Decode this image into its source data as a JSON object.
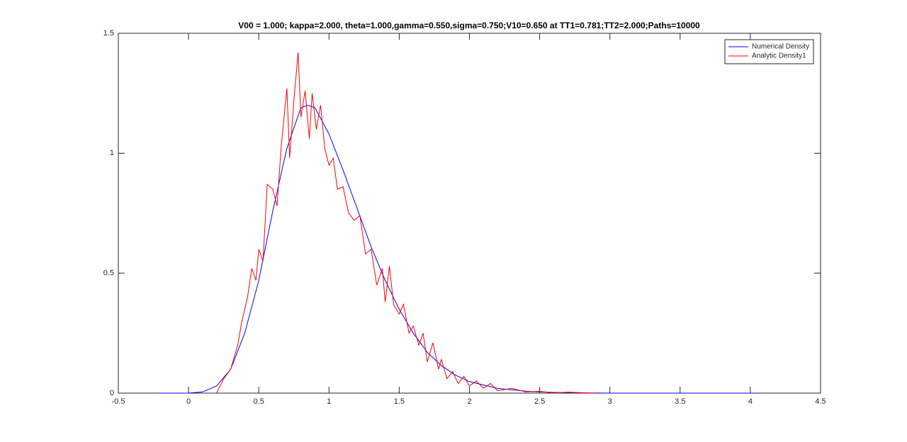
{
  "chart_data": {
    "type": "line",
    "title": "V00 = 1.000; kappa=2.000, theta=1.000,gamma=0.550,sigma=0.750;V10=0.650 at TT1=0.781;TT2=2.000;Paths=10000",
    "xlim": [
      -0.5,
      4.5
    ],
    "xticks": [
      -0.5,
      0,
      0.5,
      1,
      1.5,
      2,
      2.5,
      3,
      3.5,
      4,
      4.5
    ],
    "ylim": [
      0,
      1.5
    ],
    "yticks": [
      0,
      0.5,
      1,
      1.5
    ],
    "grid": false,
    "legend": "northeast",
    "series": [
      {
        "name": "Numerical Density",
        "color": "#0000ff",
        "x": [
          -0.2,
          0,
          0.1,
          0.2,
          0.3,
          0.4,
          0.5,
          0.6,
          0.7,
          0.8,
          0.85,
          0.9,
          1.0,
          1.1,
          1.2,
          1.3,
          1.4,
          1.5,
          1.6,
          1.7,
          1.8,
          1.9,
          2.0,
          2.2,
          2.4,
          2.6,
          2.8,
          3.0,
          4.05
        ],
        "values": [
          0,
          0,
          0.005,
          0.03,
          0.1,
          0.25,
          0.47,
          0.76,
          1.02,
          1.19,
          1.2,
          1.19,
          1.08,
          0.93,
          0.77,
          0.61,
          0.47,
          0.35,
          0.25,
          0.17,
          0.115,
          0.075,
          0.048,
          0.02,
          0.008,
          0.003,
          0.001,
          0,
          0
        ]
      },
      {
        "name": "Analytic Density1",
        "color": "#ff0000",
        "x": [
          0.2,
          0.25,
          0.3,
          0.35,
          0.38,
          0.42,
          0.45,
          0.48,
          0.5,
          0.53,
          0.56,
          0.6,
          0.63,
          0.66,
          0.7,
          0.72,
          0.75,
          0.78,
          0.8,
          0.83,
          0.86,
          0.88,
          0.91,
          0.94,
          0.97,
          1.0,
          1.03,
          1.06,
          1.1,
          1.14,
          1.18,
          1.22,
          1.26,
          1.3,
          1.34,
          1.38,
          1.4,
          1.43,
          1.46,
          1.5,
          1.53,
          1.57,
          1.6,
          1.64,
          1.67,
          1.7,
          1.74,
          1.78,
          1.8,
          1.84,
          1.88,
          1.92,
          1.96,
          2.0,
          2.05,
          2.1,
          2.15,
          2.2,
          2.3,
          2.4,
          2.5,
          2.6,
          2.7,
          2.8,
          2.9
        ],
        "values": [
          0,
          0.06,
          0.1,
          0.2,
          0.3,
          0.4,
          0.52,
          0.47,
          0.6,
          0.55,
          0.87,
          0.85,
          0.78,
          1.03,
          1.27,
          0.98,
          1.22,
          1.42,
          1.15,
          1.26,
          1.06,
          1.25,
          1.1,
          1.2,
          1.02,
          0.95,
          0.98,
          0.85,
          0.86,
          0.75,
          0.72,
          0.74,
          0.58,
          0.6,
          0.45,
          0.52,
          0.38,
          0.53,
          0.37,
          0.33,
          0.37,
          0.25,
          0.28,
          0.2,
          0.25,
          0.13,
          0.21,
          0.1,
          0.14,
          0.06,
          0.09,
          0.04,
          0.07,
          0.03,
          0.05,
          0.02,
          0.04,
          0.01,
          0.02,
          0.005,
          0.008,
          0,
          0.004,
          0.002,
          0
        ]
      }
    ]
  }
}
